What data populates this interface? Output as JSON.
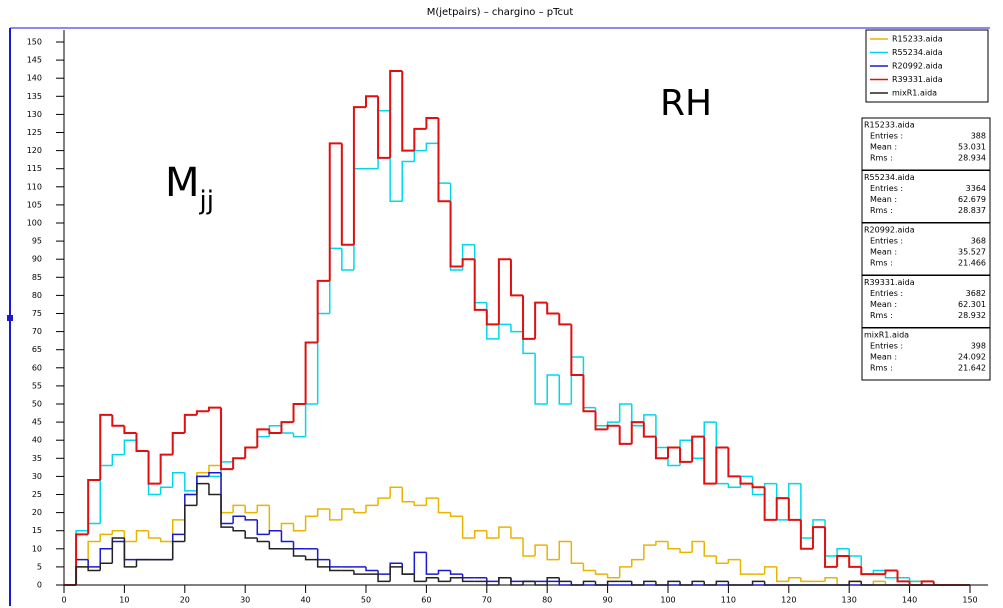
{
  "chart_data": {
    "type": "histogram",
    "title": "M(jetpairs) – chargino – pTcut",
    "annotations": {
      "rh": "RH",
      "mjj_main": "M",
      "mjj_sub": "jj"
    },
    "bins": [
      0,
      2,
      4,
      6,
      8,
      10,
      12,
      14,
      16,
      18,
      20,
      22,
      24,
      26,
      28,
      30,
      32,
      34,
      36,
      38,
      40,
      42,
      44,
      46,
      48,
      50,
      52,
      54,
      56,
      58,
      60,
      62,
      64,
      66,
      68,
      70,
      72,
      74,
      76,
      78,
      80,
      82,
      84,
      86,
      88,
      90,
      92,
      94,
      96,
      98,
      100,
      102,
      104,
      106,
      108,
      110,
      112,
      114,
      116,
      118,
      120,
      122,
      124,
      126,
      128,
      130,
      132,
      134,
      136,
      138,
      140,
      142,
      144,
      146,
      148,
      150
    ],
    "xlim": [
      0,
      150
    ],
    "ylim": [
      0,
      150
    ],
    "xticks": [
      0,
      10,
      20,
      30,
      40,
      50,
      60,
      70,
      80,
      90,
      100,
      110,
      120,
      130,
      140,
      150
    ],
    "yticks": [
      0,
      5,
      10,
      15,
      20,
      25,
      30,
      35,
      40,
      45,
      50,
      55,
      60,
      65,
      70,
      75,
      80,
      85,
      90,
      95,
      100,
      105,
      110,
      115,
      120,
      125,
      130,
      135,
      140,
      145,
      150
    ],
    "series": [
      {
        "name": "R15233.aida",
        "color": "#e8b400",
        "values": [
          0,
          5,
          12,
          14,
          15,
          12,
          15,
          13,
          12,
          18,
          25,
          31,
          33,
          20,
          22,
          20,
          22,
          15,
          17,
          15,
          19,
          21,
          18,
          21,
          20,
          22,
          24,
          27,
          23,
          22,
          24,
          20,
          19,
          13,
          15,
          13,
          16,
          13,
          8,
          11,
          7,
          12,
          6,
          4,
          3,
          2,
          5,
          7,
          11,
          12,
          10,
          9,
          12,
          8,
          6,
          7,
          3,
          3,
          5,
          1,
          2,
          1,
          1,
          2,
          0,
          1,
          0,
          1,
          0,
          0,
          1,
          0,
          0,
          0,
          0
        ]
      },
      {
        "name": "R55234.aida",
        "color": "#00d8e8",
        "values": [
          0,
          15,
          17,
          33,
          36,
          40,
          37,
          25,
          27,
          31,
          26,
          30,
          30,
          34,
          35,
          38,
          41,
          44,
          42,
          41,
          50,
          75,
          93,
          87,
          115,
          115,
          131,
          106,
          117,
          120,
          122,
          111,
          87,
          94,
          78,
          68,
          72,
          70,
          64,
          50,
          58,
          50,
          63,
          49,
          44,
          45,
          50,
          44,
          47,
          38,
          33,
          40,
          35,
          45,
          28,
          27,
          30,
          25,
          28,
          18,
          28,
          13,
          18,
          8,
          10,
          8,
          3,
          4,
          2,
          2,
          1,
          1,
          0,
          0,
          0
        ]
      },
      {
        "name": "R20992.aida",
        "color": "#1a1ad0",
        "values": [
          0,
          7,
          5,
          10,
          12,
          7,
          7,
          7,
          7,
          14,
          25,
          30,
          31,
          17,
          19,
          18,
          14,
          15,
          12,
          10,
          10,
          7,
          5,
          5,
          5,
          4,
          3,
          6,
          3,
          9,
          3,
          4,
          3,
          2,
          2,
          1,
          2,
          1,
          1,
          1,
          1,
          0,
          0,
          0,
          0,
          0,
          0,
          0,
          0,
          0,
          0,
          0,
          0,
          0,
          0,
          0,
          0,
          0,
          0,
          0,
          0,
          0,
          0,
          0,
          0,
          0,
          0,
          0,
          0,
          0,
          0,
          0,
          0,
          0,
          0
        ]
      },
      {
        "name": "R39331.aida",
        "color": "#e01010",
        "values": [
          0,
          14,
          29,
          47,
          44,
          42,
          37,
          28,
          36,
          42,
          47,
          48,
          49,
          32,
          35,
          38,
          43,
          42,
          45,
          50,
          67,
          84,
          122,
          94,
          132,
          135,
          118,
          142,
          120,
          126,
          129,
          106,
          88,
          90,
          76,
          72,
          90,
          80,
          68,
          78,
          75,
          72,
          58,
          48,
          43,
          44,
          39,
          45,
          41,
          35,
          38,
          34,
          41,
          28,
          38,
          30,
          28,
          27,
          18,
          24,
          18,
          10,
          16,
          5,
          8,
          5,
          3,
          3,
          4,
          1,
          0,
          1,
          0,
          0,
          0
        ]
      },
      {
        "name": "mixR1.aida",
        "color": "#222222",
        "values": [
          0,
          5,
          4,
          6,
          13,
          5,
          7,
          7,
          7,
          12,
          22,
          28,
          25,
          16,
          15,
          13,
          12,
          10,
          10,
          8,
          7,
          5,
          4,
          4,
          3,
          3,
          1,
          5,
          3,
          1,
          2,
          1,
          2,
          1,
          1,
          0,
          2,
          0,
          1,
          0,
          2,
          1,
          0,
          1,
          0,
          1,
          1,
          0,
          1,
          0,
          1,
          0,
          1,
          0,
          1,
          0,
          0,
          1,
          0,
          0,
          0,
          0,
          0,
          0,
          0,
          1,
          0,
          0,
          0,
          0,
          0,
          0,
          0,
          0,
          0
        ]
      }
    ],
    "stats_labels": [
      "Entries :",
      "Mean :",
      "Rms :"
    ],
    "stats": [
      {
        "name": "R15233.aida",
        "entries": 388,
        "mean": 53.031,
        "rms": 28.934
      },
      {
        "name": "R55234.aida",
        "entries": 3364,
        "mean": 62.679,
        "rms": 28.837
      },
      {
        "name": "R20992.aida",
        "entries": 368,
        "mean": 35.527,
        "rms": 21.466
      },
      {
        "name": "R39331.aida",
        "entries": 3682,
        "mean": 62.301,
        "rms": 28.932
      },
      {
        "name": "mixR1.aida",
        "entries": 398,
        "mean": 24.092,
        "rms": 21.642
      }
    ]
  }
}
